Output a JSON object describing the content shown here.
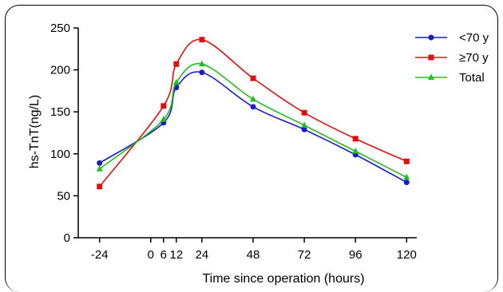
{
  "chart_data": {
    "type": "line",
    "title": "",
    "xlabel": "Time since operation (hours)",
    "ylabel": "hs-TnT(ng/L)",
    "x": [
      -24,
      6,
      12,
      24,
      48,
      72,
      96,
      120
    ],
    "xticks": [
      -24,
      0,
      6,
      12,
      24,
      48,
      72,
      96,
      120
    ],
    "xlim": [
      -34,
      124
    ],
    "yticks": [
      0,
      50,
      100,
      150,
      200,
      250
    ],
    "ylim": [
      0,
      250
    ],
    "grid": false,
    "legend_position": "top-right",
    "series": [
      {
        "name": "<70 y",
        "color": "#1a1acc",
        "marker": "circle",
        "values": [
          89,
          137,
          179,
          197,
          156,
          129,
          99,
          66
        ]
      },
      {
        "name": "≥70 y",
        "color": "#e01010",
        "marker": "square",
        "values": [
          61,
          157,
          207,
          236,
          190,
          149,
          118,
          91
        ]
      },
      {
        "name": "Total",
        "color": "#22bb22",
        "marker": "triangle",
        "values": [
          82,
          141,
          185,
          207,
          165,
          134,
          103,
          72
        ]
      }
    ]
  }
}
